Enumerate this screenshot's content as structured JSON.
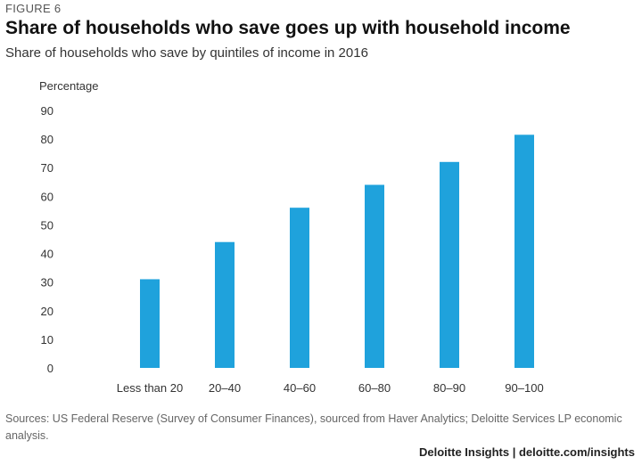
{
  "header": {
    "figure_label": "FIGURE 6",
    "title": "Share of households who save goes up with household income",
    "subtitle": "Share of households who save by quintiles of income in 2016"
  },
  "chart_data": {
    "type": "bar",
    "title": "Share of households who save goes up with household income",
    "subtitle": "Share of households who save by quintiles of income in 2016",
    "ylabel": "Percentage",
    "xlabel": "",
    "categories": [
      "Less than 20",
      "20–40",
      "40–60",
      "60–80",
      "80–90",
      "90–100"
    ],
    "values": [
      31,
      44,
      56,
      64,
      72,
      81.5
    ],
    "ylim": [
      0,
      90
    ],
    "yticks": [
      0,
      10,
      20,
      30,
      40,
      50,
      60,
      70,
      80,
      90
    ],
    "bar_color": "#1fa2dc",
    "grid": false,
    "legend": "none"
  },
  "footer": {
    "source": "Sources: US Federal Reserve (Survey of Consumer Finances), sourced from Haver Analytics; Deloitte Services LP economic analysis.",
    "credit": "Deloitte Insights | deloitte.com/insights"
  }
}
